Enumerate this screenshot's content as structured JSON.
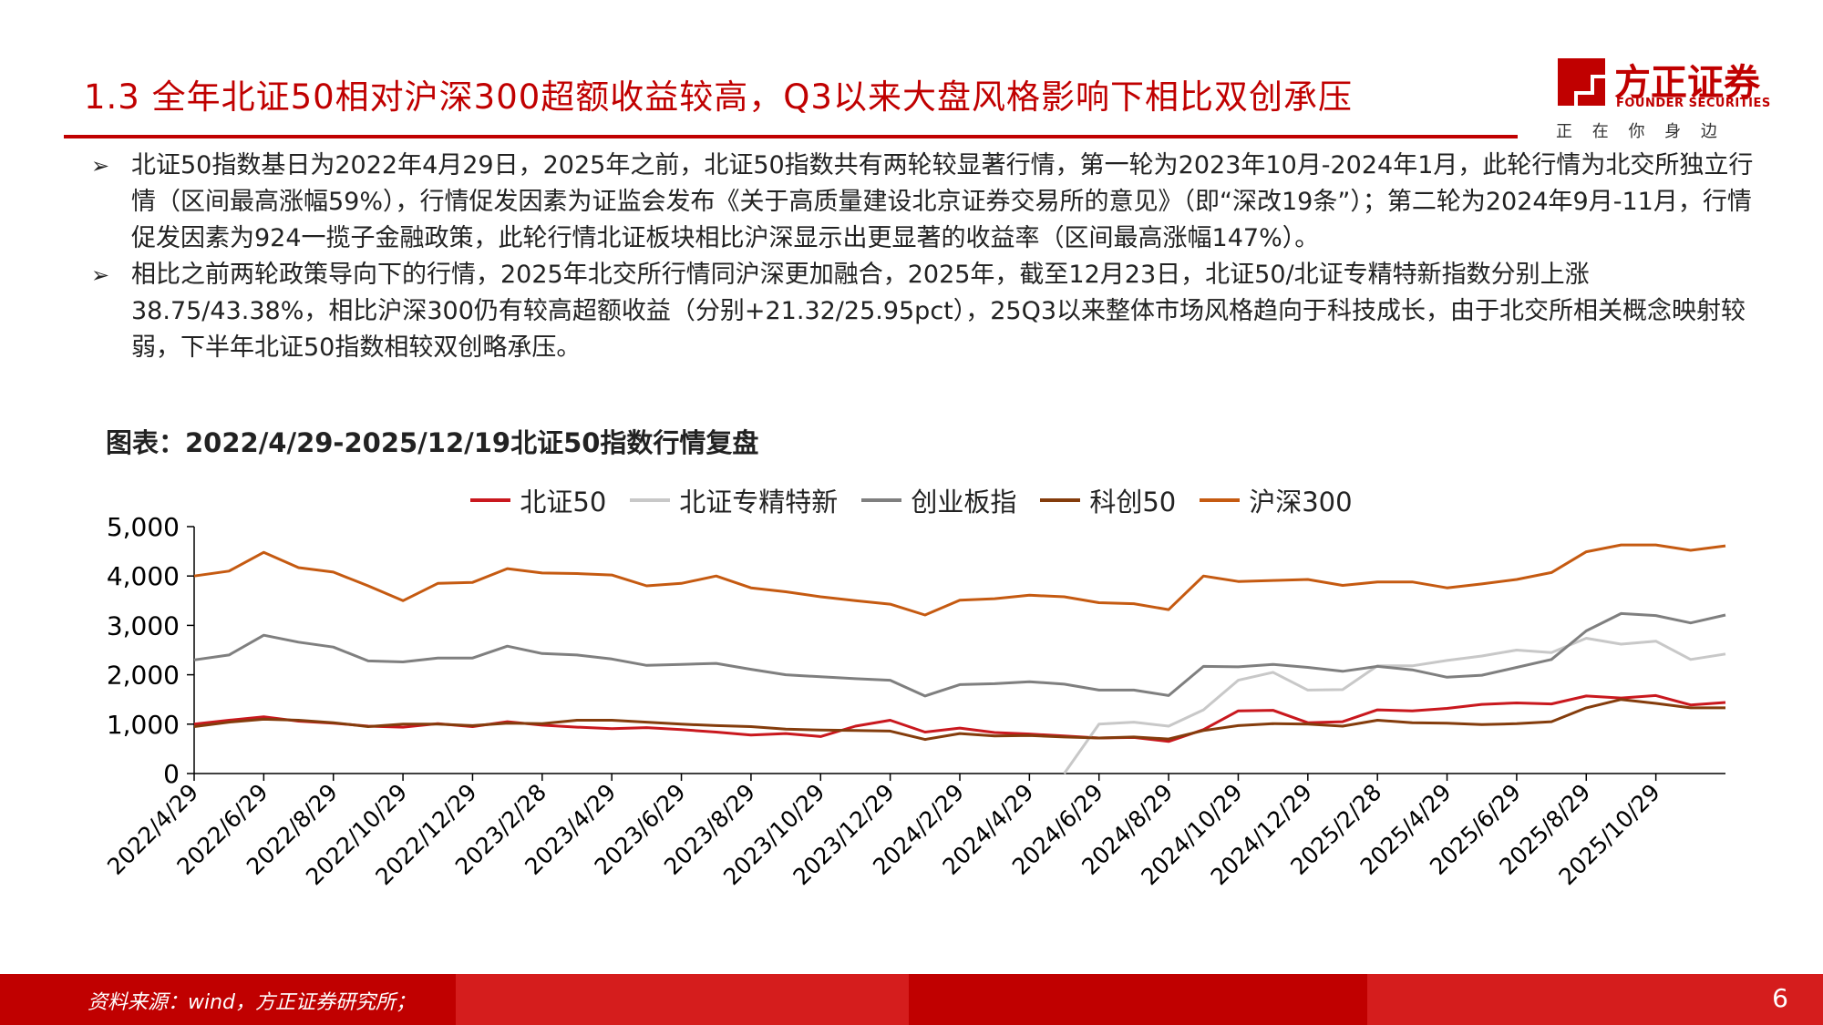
{
  "header": {
    "title": "1.3 全年北证50相对沪深300超额收益较高，Q3以来大盘风格影响下相比双创承压",
    "logo_name": "方正证券",
    "logo_en": "FOUNDER SECURITIES",
    "logo_tagline": "正 在 你 身 边"
  },
  "bullets": [
    "北证50指数基日为2022年4月29日，2025年之前，北证50指数共有两轮较显著行情，第一轮为2023年10月-2024年1月，此轮行情为北交所独立行情（区间最高涨幅59%），行情促发因素为证监会发布《关于高质量建设北京证券交易所的意见》（即“深改19条”）；第二轮为2024年9月-11月，行情促发因素为924一揽子金融政策，此轮行情北证板块相比沪深显示出更显著的收益率（区间最高涨幅147%）。",
    "相比之前两轮政策导向下的行情，2025年北交所行情同沪深更加融合，2025年，截至12月23日，北证50/北证专精特新指数分别上涨38.75/43.38%，相比沪深300仍有较高超额收益（分别+21.32/25.95pct），25Q3以来整体市场风格趋向于科技成长，由于北交所相关概念映射较弱，下半年北证50指数相较双创略承压。"
  ],
  "chart_data": {
    "type": "line",
    "title": "图表：2022/4/29-2025/12/19北证50指数行情复盘",
    "categories": [
      "2022/4/29",
      null,
      "2022/6/29",
      null,
      "2022/8/29",
      null,
      "2022/10/29",
      null,
      "2022/12/29",
      null,
      "2023/2/28",
      null,
      "2023/4/29",
      null,
      "2023/6/29",
      null,
      "2023/8/29",
      null,
      "2023/10/29",
      null,
      "2023/12/29",
      null,
      "2024/2/29",
      null,
      "2024/4/29",
      null,
      "2024/6/29",
      null,
      "2024/8/29",
      null,
      "2024/10/29",
      null,
      "2024/12/29",
      null,
      "2025/2/28",
      null,
      "2025/4/29",
      null,
      "2025/6/29",
      null,
      "2025/8/29",
      null,
      "2025/10/29",
      null,
      null
    ],
    "ylim": [
      0,
      5000
    ],
    "yticks": [
      0,
      {
        "value": 1000,
        "label": "1,000"
      },
      {
        "value": 2000,
        "label": "2,000"
      },
      {
        "value": 3000,
        "label": "3,000"
      },
      {
        "value": 4000,
        "label": "4,000"
      },
      {
        "value": 5000,
        "label": "5,000"
      }
    ],
    "grid": false,
    "series": [
      {
        "name": "北证50",
        "color": "#c9181e",
        "values": [
          1000,
          1080,
          1150,
          1060,
          1020,
          960,
          940,
          1010,
          950,
          1050,
          980,
          940,
          910,
          930,
          890,
          840,
          780,
          810,
          750,
          960,
          1080,
          840,
          920,
          830,
          800,
          760,
          720,
          730,
          650,
          890,
          1270,
          1280,
          1030,
          1050,
          1290,
          1270,
          1320,
          1400,
          1430,
          1410,
          1570,
          1530,
          1580,
          1390,
          1440
        ]
      },
      {
        "name": "北证专精特新",
        "color": "#c8c8c8",
        "values": [
          null,
          null,
          null,
          null,
          null,
          null,
          null,
          null,
          null,
          null,
          null,
          null,
          null,
          null,
          null,
          null,
          null,
          null,
          null,
          null,
          null,
          null,
          null,
          null,
          null,
          0,
          1000,
          1040,
          960,
          1290,
          1890,
          2050,
          1690,
          1700,
          2180,
          2180,
          2290,
          2380,
          2500,
          2450,
          2740,
          2620,
          2680,
          2310,
          2420
        ]
      },
      {
        "name": "创业板指",
        "color": "#7f7f7f",
        "values": [
          2300,
          2400,
          2800,
          2660,
          2560,
          2280,
          2260,
          2340,
          2340,
          2580,
          2430,
          2400,
          2320,
          2190,
          2210,
          2230,
          2110,
          2000,
          1960,
          1920,
          1890,
          1570,
          1800,
          1820,
          1860,
          1810,
          1690,
          1690,
          1580,
          2170,
          2160,
          2210,
          2150,
          2070,
          2170,
          2100,
          1950,
          1990,
          2150,
          2310,
          2890,
          3240,
          3200,
          3050,
          3210
        ]
      },
      {
        "name": "科创50",
        "color": "#843c0c",
        "values": [
          950,
          1040,
          1100,
          1080,
          1030,
          950,
          1000,
          1000,
          970,
          1020,
          1010,
          1080,
          1080,
          1040,
          1000,
          970,
          950,
          900,
          880,
          870,
          860,
          690,
          810,
          760,
          770,
          740,
          720,
          740,
          700,
          870,
          970,
          1010,
          1000,
          960,
          1080,
          1030,
          1020,
          990,
          1010,
          1050,
          1330,
          1500,
          1420,
          1330,
          1330
        ]
      },
      {
        "name": "沪深300",
        "color": "#c55a11",
        "values": [
          4000,
          4100,
          4480,
          4170,
          4080,
          3800,
          3500,
          3850,
          3870,
          4150,
          4060,
          4050,
          4020,
          3800,
          3850,
          4000,
          3760,
          3680,
          3580,
          3500,
          3430,
          3210,
          3510,
          3540,
          3610,
          3580,
          3460,
          3440,
          3320,
          4000,
          3890,
          3910,
          3930,
          3810,
          3880,
          3880,
          3760,
          3840,
          3930,
          4070,
          4490,
          4630,
          4630,
          4520,
          4610
        ]
      }
    ]
  },
  "footer": {
    "source": "资料来源：wind，方正证券研究所；",
    "page": "6"
  }
}
